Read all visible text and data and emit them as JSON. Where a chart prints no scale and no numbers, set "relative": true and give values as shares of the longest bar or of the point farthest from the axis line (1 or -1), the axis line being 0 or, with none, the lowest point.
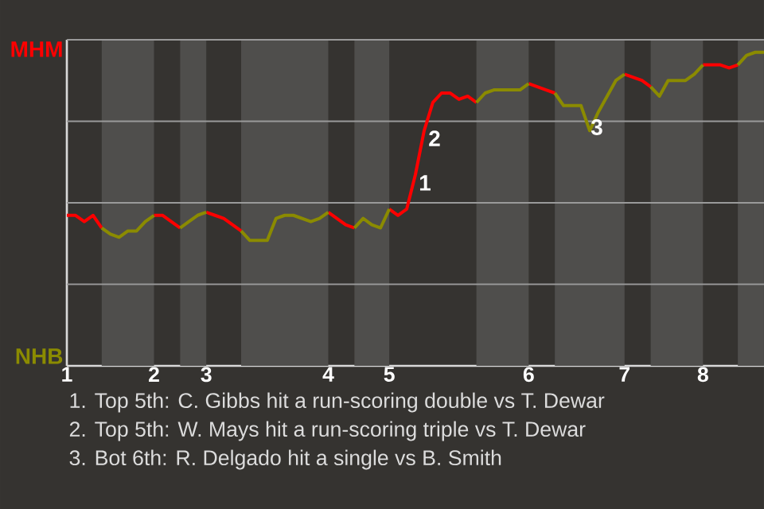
{
  "chart_data": {
    "type": "line",
    "relative": true,
    "categories": [
      "1",
      null,
      null,
      null,
      null,
      null,
      null,
      null,
      null,
      null,
      "2",
      null,
      null,
      null,
      null,
      null,
      "3",
      null,
      null,
      null,
      null,
      null,
      null,
      null,
      null,
      null,
      null,
      null,
      null,
      null,
      "4",
      null,
      null,
      null,
      null,
      null,
      null,
      "5",
      null,
      null,
      null,
      null,
      null,
      null,
      null,
      null,
      null,
      null,
      null,
      null,
      null,
      null,
      null,
      "6",
      null,
      null,
      null,
      null,
      null,
      null,
      null,
      null,
      null,
      null,
      "7",
      null,
      null,
      null,
      null,
      null,
      null,
      null,
      null,
      "8",
      null,
      null,
      null,
      null,
      null,
      null,
      null
    ],
    "series": [
      {
        "name": "MHM",
        "color": "#ff0000",
        "values": [
          0.48,
          0.48,
          0.46,
          0.48,
          0.44,
          null,
          null,
          null,
          null,
          null,
          0.48,
          0.48,
          0.46,
          0.44,
          null,
          null,
          0.49,
          0.48,
          0.47,
          0.45,
          0.43,
          null,
          null,
          null,
          null,
          null,
          null,
          null,
          null,
          null,
          0.49,
          0.47,
          0.45,
          0.44,
          null,
          null,
          null,
          0.5,
          0.48,
          0.5,
          0.61,
          0.75,
          0.84,
          0.87,
          0.87,
          0.85,
          0.86,
          0.84,
          null,
          null,
          null,
          null,
          null,
          0.9,
          0.89,
          0.88,
          0.87,
          null,
          null,
          null,
          null,
          null,
          null,
          null,
          0.93,
          0.92,
          0.91,
          0.89,
          null,
          null,
          null,
          null,
          null,
          0.96,
          0.96,
          0.96,
          0.95,
          0.96,
          null,
          null,
          null
        ]
      },
      {
        "name": "NHB",
        "color": "#8b8b00",
        "values": [
          null,
          null,
          null,
          null,
          0.44,
          0.42,
          0.41,
          0.43,
          0.43,
          0.46,
          0.48,
          null,
          null,
          0.44,
          0.46,
          0.48,
          0.49,
          null,
          null,
          null,
          0.43,
          0.4,
          0.4,
          0.4,
          0.47,
          0.48,
          0.48,
          0.47,
          0.46,
          0.47,
          0.49,
          null,
          null,
          0.44,
          0.47,
          0.45,
          0.44,
          0.5,
          null,
          null,
          null,
          null,
          null,
          null,
          null,
          null,
          null,
          0.84,
          0.87,
          0.88,
          0.88,
          0.88,
          0.88,
          0.9,
          null,
          null,
          0.87,
          0.83,
          0.83,
          0.83,
          0.75,
          0.81,
          0.86,
          0.91,
          0.93,
          null,
          null,
          0.89,
          0.86,
          0.91,
          0.91,
          0.91,
          0.93,
          0.96,
          null,
          null,
          null,
          0.96,
          0.99,
          1,
          1
        ]
      }
    ],
    "legend": "left",
    "grid": "y",
    "annotations": [
      "1",
      "2",
      "3",
      "1. Top 5th: C. Gibbs hit a run-scoring double vs T. Dewar",
      "2. Top 5th: W. Mays hit a run-scoring triple vs T. Dewar",
      "3. Bot 6th: R. Delgado hit a single vs B. Smith"
    ]
  }
}
